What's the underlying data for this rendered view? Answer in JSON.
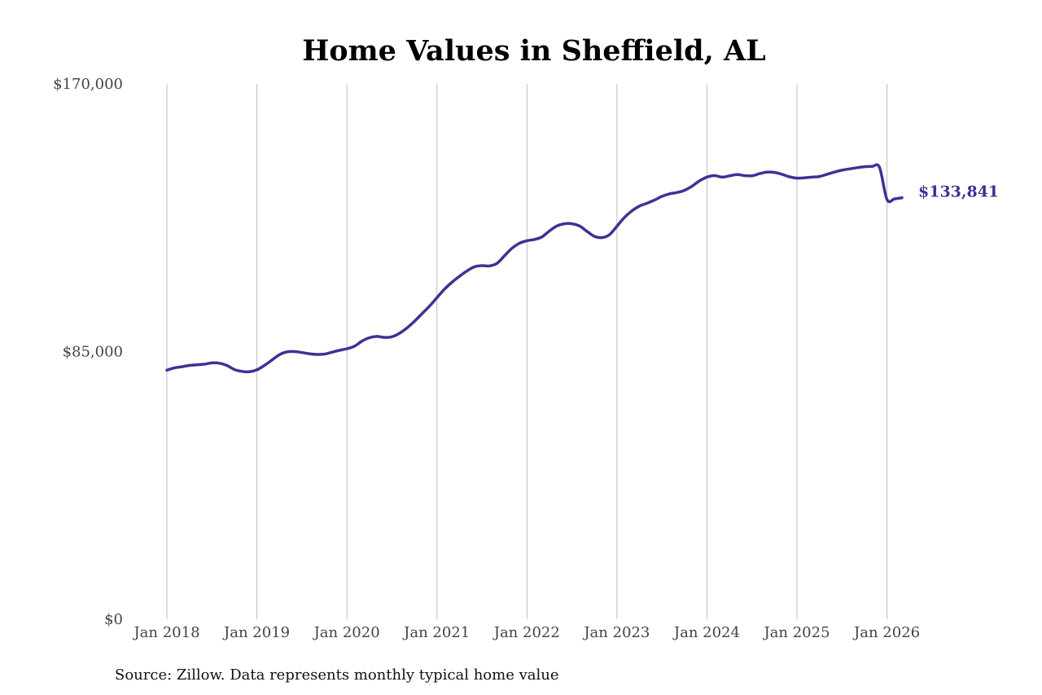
{
  "chart_data": {
    "type": "line",
    "title": "Home Values in Sheffield, AL",
    "source": "Source: Zillow. Data represents monthly typical home value",
    "xlabel": "",
    "ylabel": "",
    "ylim": [
      0,
      170000
    ],
    "y_ticks": [
      {
        "value": 0,
        "label": "$0"
      },
      {
        "value": 85000,
        "label": "$85,000"
      },
      {
        "value": 170000,
        "label": "$170,000"
      }
    ],
    "x_range": [
      "2018-01",
      "2026-03"
    ],
    "x_ticks": [
      {
        "date": "2018-01",
        "label": "Jan 2018"
      },
      {
        "date": "2019-01",
        "label": "Jan 2019"
      },
      {
        "date": "2020-01",
        "label": "Jan 2020"
      },
      {
        "date": "2021-01",
        "label": "Jan 2021"
      },
      {
        "date": "2022-01",
        "label": "Jan 2022"
      },
      {
        "date": "2023-01",
        "label": "Jan 2023"
      },
      {
        "date": "2024-01",
        "label": "Jan 2024"
      },
      {
        "date": "2025-01",
        "label": "Jan 2025"
      },
      {
        "date": "2026-01",
        "label": "Jan 2026"
      }
    ],
    "grid": {
      "vertical": true,
      "horizontal": false
    },
    "line_color": "#3b3494",
    "end_label": "$133,841",
    "series": [
      {
        "x": [
          "2018-01",
          "2018-02",
          "2018-03",
          "2018-04",
          "2018-05",
          "2018-06",
          "2018-07",
          "2018-08",
          "2018-09",
          "2018-10",
          "2018-11",
          "2018-12",
          "2019-01",
          "2019-02",
          "2019-03",
          "2019-04",
          "2019-05",
          "2019-06",
          "2019-07",
          "2019-08",
          "2019-09",
          "2019-10",
          "2019-11",
          "2019-12",
          "2020-01",
          "2020-02",
          "2020-03",
          "2020-04",
          "2020-05",
          "2020-06",
          "2020-07",
          "2020-08",
          "2020-09",
          "2020-10",
          "2020-11",
          "2020-12",
          "2021-01",
          "2021-02",
          "2021-03",
          "2021-04",
          "2021-05",
          "2021-06",
          "2021-07",
          "2021-08",
          "2021-09",
          "2021-10",
          "2021-11",
          "2021-12",
          "2022-01",
          "2022-02",
          "2022-03",
          "2022-04",
          "2022-05",
          "2022-06",
          "2022-07",
          "2022-08",
          "2022-09",
          "2022-10",
          "2022-11",
          "2022-12",
          "2023-01",
          "2023-02",
          "2023-03",
          "2023-04",
          "2023-05",
          "2023-06",
          "2023-07",
          "2023-08",
          "2023-09",
          "2023-10",
          "2023-11",
          "2023-12",
          "2024-01",
          "2024-02",
          "2024-03",
          "2024-04",
          "2024-05",
          "2024-06",
          "2024-07",
          "2024-08",
          "2024-09",
          "2024-10",
          "2024-11",
          "2024-12",
          "2025-01",
          "2025-02",
          "2025-03",
          "2025-04",
          "2025-05",
          "2025-06",
          "2025-07",
          "2025-08",
          "2025-09",
          "2025-10",
          "2025-11",
          "2025-12",
          "2026-01",
          "2026-02",
          "2026-03"
        ],
        "y": [
          79100,
          79800,
          80200,
          80600,
          80800,
          81000,
          81400,
          81300,
          80600,
          79300,
          78700,
          78600,
          79200,
          80600,
          82300,
          84000,
          84900,
          85000,
          84700,
          84300,
          84100,
          84200,
          84800,
          85400,
          85900,
          86700,
          88300,
          89400,
          89800,
          89500,
          89700,
          90800,
          92500,
          94600,
          97000,
          99400,
          102100,
          104800,
          107000,
          108900,
          110600,
          111900,
          112300,
          112200,
          113000,
          115400,
          117800,
          119400,
          120200,
          120600,
          121400,
          123300,
          124900,
          125600,
          125600,
          124900,
          123200,
          121600,
          121200,
          122100,
          124800,
          127600,
          129700,
          131200,
          132100,
          133100,
          134300,
          135100,
          135500,
          136200,
          137500,
          139200,
          140400,
          140900,
          140400,
          140800,
          141200,
          140900,
          140800,
          141500,
          142000,
          141900,
          141300,
          140500,
          140100,
          140200,
          140400,
          140600,
          141300,
          142000,
          142600,
          143000,
          143400,
          143700,
          143800,
          143500,
          133300,
          133500,
          133841
        ]
      }
    ]
  }
}
